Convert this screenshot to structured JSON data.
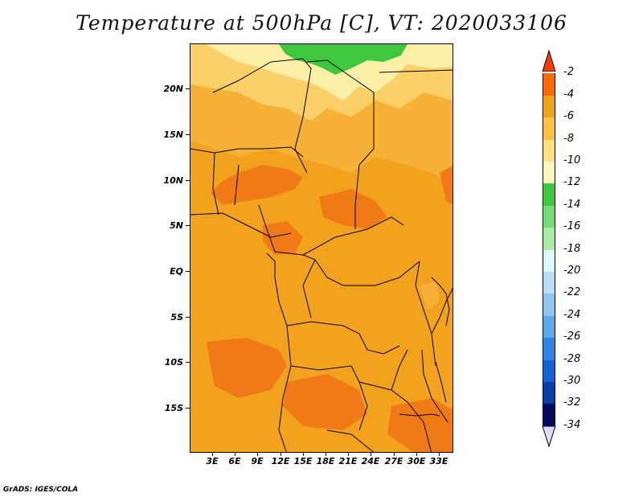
{
  "title": "Temperature at 500hPa [C], VT: 2020033106",
  "credit": "GrADS: IGES/COLA",
  "lat_labels": [
    "20N",
    "15N",
    "10N",
    "5N",
    "EQ",
    "5S",
    "10S",
    "15S"
  ],
  "lon_labels": [
    "3E",
    "6E",
    "9E",
    "12E",
    "15E",
    "18E",
    "21E",
    "24E",
    "27E",
    "30E",
    "33E"
  ],
  "legend": {
    "labels": [
      "-2",
      "-4",
      "-6",
      "-8",
      "-10",
      "-12",
      "-14",
      "-16",
      "-18",
      "-20",
      "-22",
      "-24",
      "-26",
      "-28",
      "-30",
      "-32",
      "-34"
    ],
    "colors": [
      "#ff3a00",
      "#ff6a00",
      "#f2a21c",
      "#ffc043",
      "#ffe27a",
      "#fff8b8",
      "#3fc83f",
      "#72dd72",
      "#a8eca8",
      "#dff8ff",
      "#b8ddf8",
      "#8ec6f3",
      "#5aaaee",
      "#2f85e6",
      "#1464d6",
      "#0a3fa8",
      "#050a60",
      "#dcdcff"
    ]
  },
  "field_colors": {
    "base": "#f2a21c",
    "warm": "#f07a16",
    "lighter": "#f6b236",
    "light": "#fcd068",
    "pale": "#fff0a8",
    "green": "#3fc83f"
  }
}
